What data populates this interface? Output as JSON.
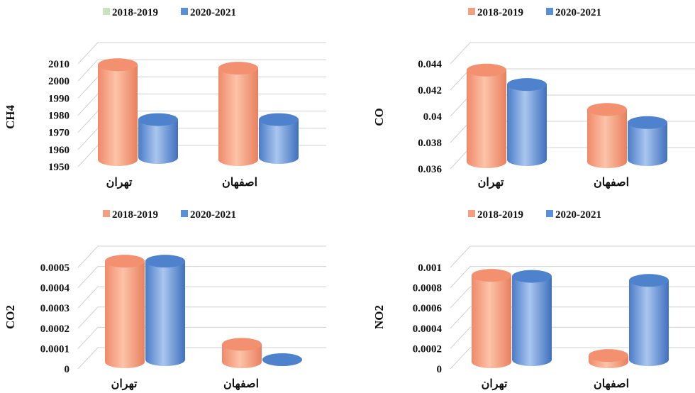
{
  "colors": {
    "series_2018_2019": "#F4A080",
    "series_2018_2019_legend_ch4": "#C9E3C0",
    "series_2020_2021": "#5B8FD6",
    "gridline": "#D0D0D0",
    "text": "#111111"
  },
  "chart_data": [
    {
      "type": "bar",
      "ylabel": "CH4",
      "categories": [
        "تهران",
        "اصفهان"
      ],
      "series": [
        {
          "name": "2018-2019",
          "values": [
            2007,
            2005
          ]
        },
        {
          "name": "2020-2021",
          "values": [
            1975,
            1975
          ]
        }
      ],
      "ylim": [
        1950,
        2010
      ],
      "yticks": [
        1950,
        1960,
        1970,
        1980,
        1990,
        2000,
        2010
      ],
      "ytick_labels": [
        "1950",
        "1960",
        "1970",
        "1980",
        "1990",
        "2000",
        "2010"
      ],
      "grid": true,
      "legend": "top"
    },
    {
      "type": "bar",
      "ylabel": "CO",
      "categories": [
        "تهران",
        "اصفهان"
      ],
      "series": [
        {
          "name": "2018-2019",
          "values": [
            0.0432,
            0.0402
          ]
        },
        {
          "name": "2020-2021",
          "values": [
            0.0421,
            0.0392
          ]
        }
      ],
      "ylim": [
        0.036,
        0.044
      ],
      "yticks": [
        0.036,
        0.038,
        0.04,
        0.042,
        0.044
      ],
      "ytick_labels": [
        "0.036",
        "0.038",
        "0.04",
        "0.042",
        "0.044"
      ],
      "grid": true,
      "legend": "top"
    },
    {
      "type": "bar",
      "ylabel": "CO2",
      "categories": [
        "تهران",
        "اصفهان"
      ],
      "series": [
        {
          "name": "2018-2019",
          "values": [
            0.00051,
            0.0001
          ]
        },
        {
          "name": "2020-2021",
          "values": [
            0.00052,
            0.0
          ]
        }
      ],
      "ylim": [
        0,
        0.0005
      ],
      "yticks": [
        0,
        0.0001,
        0.0002,
        0.0003,
        0.0004,
        0.0005
      ],
      "ytick_labels": [
        "0",
        "0.0001",
        "0.0002",
        "0.0003",
        "0.0004",
        "0.0005"
      ],
      "grid": true,
      "legend": "top"
    },
    {
      "type": "bar",
      "ylabel": "NO2",
      "categories": [
        "تهران",
        "اصفهان"
      ],
      "series": [
        {
          "name": "2018-2019",
          "values": [
            0.00088,
            9e-05
          ]
        },
        {
          "name": "2020-2021",
          "values": [
            0.00087,
            0.00083
          ]
        }
      ],
      "ylim": [
        0,
        0.001
      ],
      "yticks": [
        0,
        0.0002,
        0.0004,
        0.0006,
        0.0008,
        0.001
      ],
      "ytick_labels": [
        "0",
        "0.0002",
        "0.0004",
        "0.0006",
        "0.0008",
        "0.001"
      ],
      "grid": true,
      "legend": "top"
    }
  ]
}
